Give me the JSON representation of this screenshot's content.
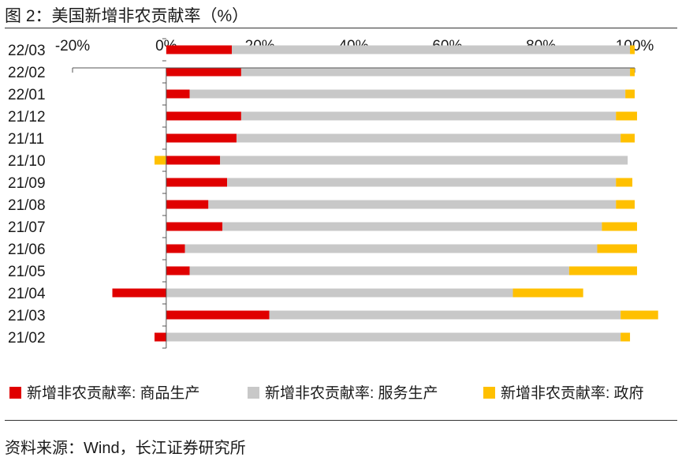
{
  "figure": {
    "title": "图 2：美国新增非农贡献率（%）",
    "source": "资料来源：Wind，长江证券研究所"
  },
  "chart_data": {
    "type": "bar",
    "orientation": "horizontal",
    "stacked": true,
    "categories": [
      "22/03",
      "22/02",
      "22/01",
      "21/12",
      "21/11",
      "21/10",
      "21/09",
      "21/08",
      "21/07",
      "21/06",
      "21/05",
      "21/04",
      "21/03",
      "21/02"
    ],
    "series": [
      {
        "name": "新增非农贡献率: 商品生产",
        "color": "#e00000",
        "values": [
          14,
          16,
          5,
          16,
          15,
          11.5,
          13,
          9,
          12,
          4,
          5,
          -11.5,
          22,
          -2.5
        ]
      },
      {
        "name": "新增非农贡献率: 服务生产",
        "color": "#c8c8c8",
        "values": [
          85,
          83,
          93,
          80,
          82,
          87,
          83,
          87,
          81,
          88,
          81,
          74,
          75,
          97
        ]
      },
      {
        "name": "新增非农贡献率: 政府",
        "color": "#ffc000",
        "values": [
          1,
          1,
          2,
          4.5,
          3,
          -2.5,
          3.5,
          4,
          7.5,
          8.5,
          14.5,
          15,
          8,
          2
        ]
      }
    ],
    "xlim": [
      -20,
      100
    ],
    "xticks": [
      -20,
      0,
      20,
      40,
      60,
      80,
      100
    ],
    "xtick_labels": [
      "-20%",
      "0%",
      "20%",
      "40%",
      "60%",
      "80%",
      "100%"
    ],
    "legend_position": "bottom",
    "grid": false
  }
}
